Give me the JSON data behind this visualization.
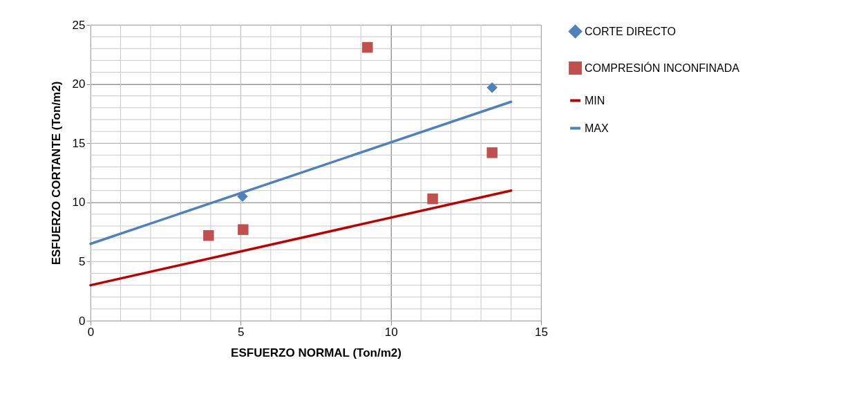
{
  "chart_data": {
    "type": "scatter",
    "xlabel": "ESFUERZO NORMAL (Ton/m2)",
    "ylabel": "ESFUERZO CORTANTE (Ton/m2)",
    "xlim": [
      0,
      15
    ],
    "xticks": [
      0,
      5,
      10,
      15
    ],
    "ylim": [
      0,
      25
    ],
    "yticks": [
      0,
      5,
      10,
      15,
      20,
      25
    ],
    "grid": true,
    "legend": "right",
    "series": [
      {
        "name": "CORTE DIRECTO",
        "marker": "diamond",
        "color": "#4f81bd",
        "x": [
          5.06,
          13.37
        ],
        "values": [
          10.5,
          19.7
        ]
      },
      {
        "name": "COMPRESIÓN INCONFINADA",
        "marker": "square",
        "color": "#c0504d",
        "x": [
          3.93,
          5.08,
          9.22,
          11.39,
          13.37
        ],
        "values": [
          7.2,
          7.7,
          23.1,
          10.3,
          14.2
        ]
      },
      {
        "name": "MIN",
        "type": "line",
        "marker": "none",
        "color": "#c00000",
        "x": [
          0,
          14
        ],
        "values": [
          3,
          11
        ]
      },
      {
        "name": "MAX",
        "type": "line",
        "marker": "none",
        "color": "#4f81bd",
        "x": [
          0,
          14
        ],
        "values": [
          6.5,
          18.5
        ]
      }
    ]
  }
}
